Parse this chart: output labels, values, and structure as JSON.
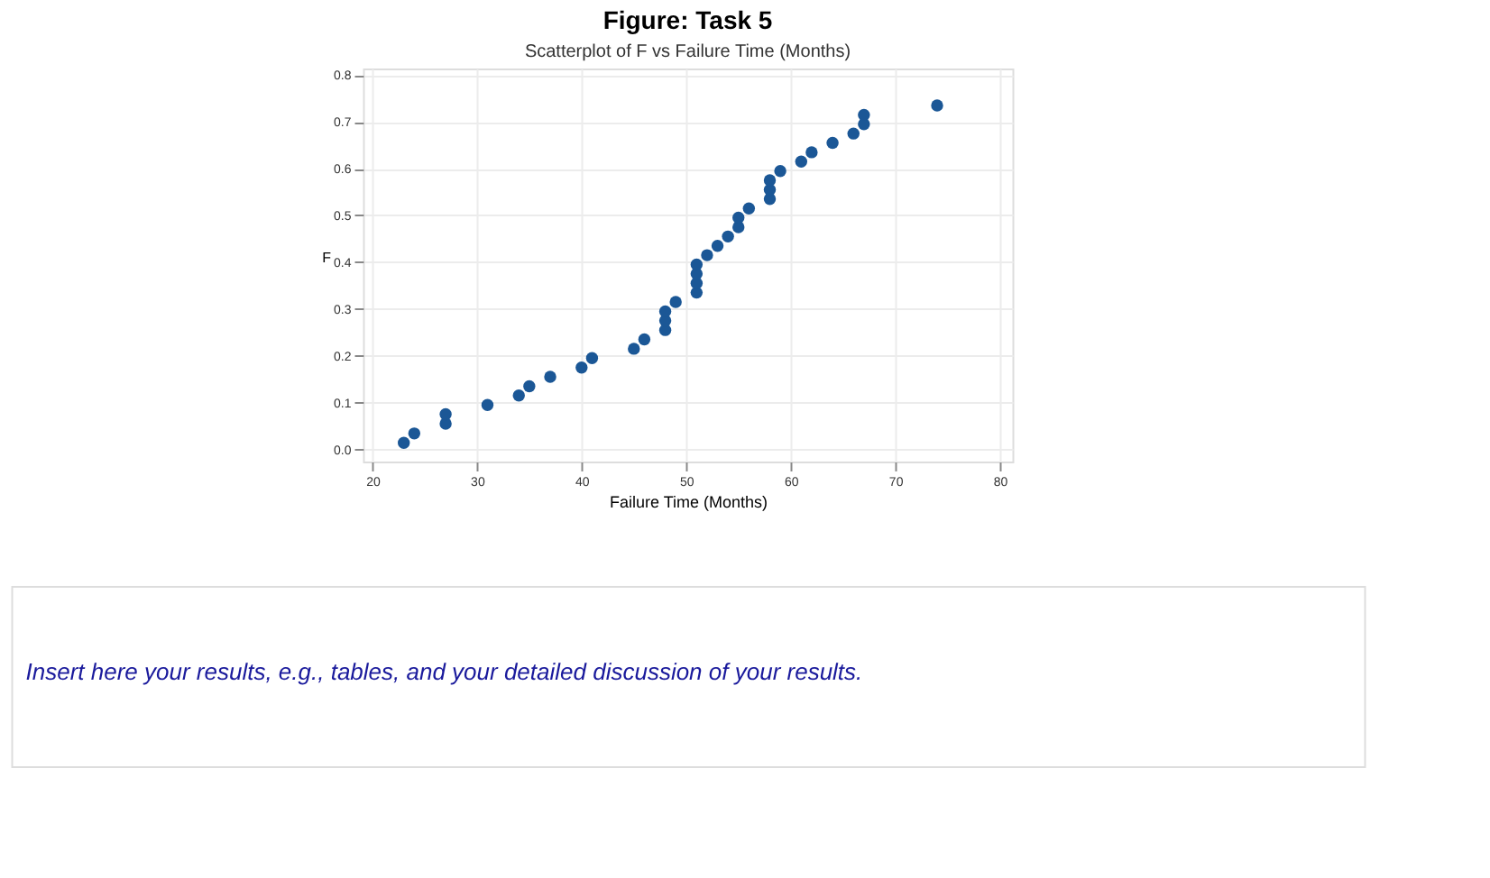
{
  "chart_data": {
    "type": "scatter",
    "title": "Figure: Task 5",
    "subtitle": "Scatterplot of F vs Failure Time (Months)",
    "xlabel": "Failure Time (Months)",
    "ylabel": "F",
    "x": [
      23,
      24,
      27,
      27,
      31,
      34,
      35,
      37,
      40,
      41,
      45,
      46,
      48,
      48,
      48,
      49,
      51,
      51,
      51,
      51,
      52,
      53,
      54,
      55,
      55,
      56,
      58,
      58,
      58,
      59,
      61,
      62,
      64,
      66,
      67,
      67,
      74
    ],
    "series": [
      {
        "color": "#1b5796",
        "values": [
          0.014,
          0.034,
          0.055,
          0.075,
          0.095,
          0.115,
          0.135,
          0.155,
          0.175,
          0.195,
          0.215,
          0.235,
          0.255,
          0.275,
          0.295,
          0.315,
          0.335,
          0.355,
          0.375,
          0.395,
          0.415,
          0.435,
          0.455,
          0.475,
          0.495,
          0.515,
          0.535,
          0.555,
          0.575,
          0.595,
          0.615,
          0.635,
          0.655,
          0.675,
          0.695,
          0.715,
          0.735
        ]
      }
    ],
    "xlim": [
      19.1,
      81.2
    ],
    "xticks": [
      20,
      30,
      40,
      50,
      60,
      70,
      80
    ],
    "ylim": [
      -0.026,
      0.814
    ],
    "yticks": [
      {
        "value": 0,
        "label": "0.0"
      },
      0.1,
      0.2,
      0.3,
      0.4,
      0.5,
      0.6,
      0.7,
      0.8
    ],
    "grid": true,
    "marker": "circle",
    "annotations": [
      "Insert here your results, e.g., tables, and your detailed discussion of your results."
    ]
  }
}
